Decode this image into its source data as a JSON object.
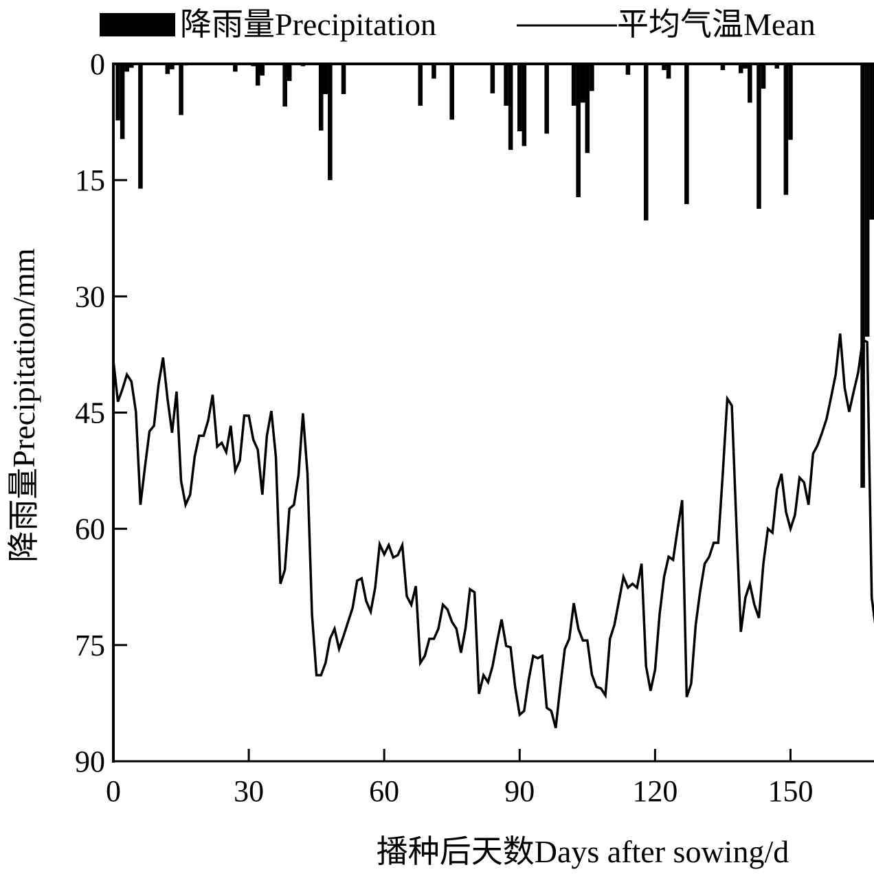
{
  "chart_data": {
    "type": "bar+line",
    "title": "",
    "xlabel": "播种后天数Days after sowing/d",
    "ylabel": "降雨量Precipitation/mm",
    "xlim": [
      0,
      168.5
    ],
    "ylim": [
      0,
      90
    ],
    "y_inverted": true,
    "x_ticks": [
      0,
      30,
      60,
      90,
      120,
      150
    ],
    "y_ticks": [
      0,
      15,
      30,
      45,
      60,
      75,
      90
    ],
    "grid": false,
    "legend": {
      "placement": "top",
      "entries": [
        {
          "label": "降雨量Precipitation",
          "kind": "bar"
        },
        {
          "label": "平均气温Mean",
          "kind": "line"
        }
      ]
    },
    "series": [
      {
        "name": "降雨量Precipitation",
        "kind": "bar",
        "color": "#000000",
        "points": [
          [
            1,
            7.3
          ],
          [
            2,
            9.7
          ],
          [
            3,
            1.0
          ],
          [
            4,
            0.5
          ],
          [
            6,
            16.1
          ],
          [
            12,
            1.3
          ],
          [
            13,
            0.7
          ],
          [
            15,
            6.6
          ],
          [
            16,
            0.2
          ],
          [
            27,
            1.0
          ],
          [
            31,
            0.3
          ],
          [
            32,
            2.8
          ],
          [
            33,
            1.5
          ],
          [
            38,
            5.5
          ],
          [
            39,
            2.2
          ],
          [
            42,
            0.3
          ],
          [
            46,
            8.6
          ],
          [
            47,
            3.9
          ],
          [
            48,
            15.0
          ],
          [
            51,
            3.9
          ],
          [
            68,
            5.4
          ],
          [
            71,
            1.9
          ],
          [
            75,
            7.2
          ],
          [
            84,
            3.8
          ],
          [
            87,
            5.4
          ],
          [
            88,
            11.1
          ],
          [
            90,
            8.7
          ],
          [
            91,
            10.6
          ],
          [
            96,
            9.0
          ],
          [
            102,
            5.4
          ],
          [
            103,
            17.2
          ],
          [
            104,
            5.0
          ],
          [
            105,
            11.5
          ],
          [
            106,
            3.5
          ],
          [
            114,
            1.4
          ],
          [
            118,
            20.2
          ],
          [
            122,
            0.8
          ],
          [
            123,
            1.9
          ],
          [
            127,
            18.1
          ],
          [
            135,
            0.8
          ],
          [
            139,
            1.2
          ],
          [
            140,
            0.6
          ],
          [
            141,
            5.0
          ],
          [
            143,
            18.7
          ],
          [
            144,
            3.2
          ],
          [
            147,
            0.6
          ],
          [
            149,
            16.9
          ],
          [
            150,
            9.8
          ],
          [
            166,
            54.7
          ],
          [
            167,
            35.2
          ],
          [
            168,
            20.1
          ]
        ]
      },
      {
        "name": "平均气温Mean",
        "kind": "line",
        "color": "#000000",
        "note": "values read against left axis scale (right axis not shown)",
        "x_start": 0,
        "x_step": 1,
        "values": [
          38.3,
          43.6,
          42.0,
          40.1,
          41.0,
          44.9,
          56.9,
          52.0,
          47.4,
          46.7,
          41.4,
          37.9,
          43.2,
          47.6,
          42.3,
          53.8,
          56.9,
          55.6,
          50.7,
          48.0,
          48.0,
          46.0,
          42.7,
          49.4,
          48.9,
          50.1,
          46.7,
          52.5,
          51.2,
          45.4,
          45.4,
          48.5,
          49.8,
          55.6,
          48.0,
          44.8,
          50.7,
          67.1,
          65.3,
          57.4,
          56.9,
          53.1,
          45.1,
          52.9,
          71.1,
          78.9,
          78.9,
          77.3,
          74.2,
          72.9,
          75.5,
          73.8,
          72.0,
          70.2,
          66.7,
          66.4,
          69.3,
          70.7,
          67.6,
          62.0,
          63.3,
          62.1,
          63.7,
          63.4,
          62.1,
          68.7,
          69.8,
          67.4,
          77.3,
          76.4,
          74.2,
          74.2,
          72.9,
          69.8,
          70.4,
          72.0,
          72.9,
          76.0,
          72.9,
          67.8,
          68.2,
          81.3,
          78.9,
          79.8,
          77.7,
          74.6,
          71.7,
          75.1,
          75.3,
          80.4,
          84.0,
          83.5,
          79.5,
          76.4,
          76.7,
          76.4,
          83.1,
          83.5,
          85.7,
          80.4,
          75.5,
          74.2,
          69.6,
          72.9,
          74.4,
          74.4,
          78.8,
          80.4,
          80.6,
          81.5,
          74.2,
          72.4,
          69.3,
          66.2,
          67.6,
          67.1,
          67.6,
          64.5,
          77.7,
          80.9,
          78.2,
          71.1,
          66.2,
          63.6,
          64.0,
          60.0,
          56.3,
          81.7,
          80.0,
          72.4,
          68.0,
          64.5,
          63.6,
          61.8,
          61.8,
          52.9,
          43.2,
          44.1,
          59.1,
          73.3,
          68.9,
          67.1,
          69.8,
          71.5,
          64.5,
          60.0,
          60.5,
          54.9,
          52.9,
          57.8,
          60.0,
          58.2,
          53.4,
          54.0,
          56.9,
          50.3,
          49.2,
          47.6,
          45.8,
          43.0,
          40.1,
          34.8,
          41.8,
          44.9,
          42.3,
          39.8,
          35.6,
          35.9,
          68.9,
          73.3
        ]
      }
    ]
  }
}
